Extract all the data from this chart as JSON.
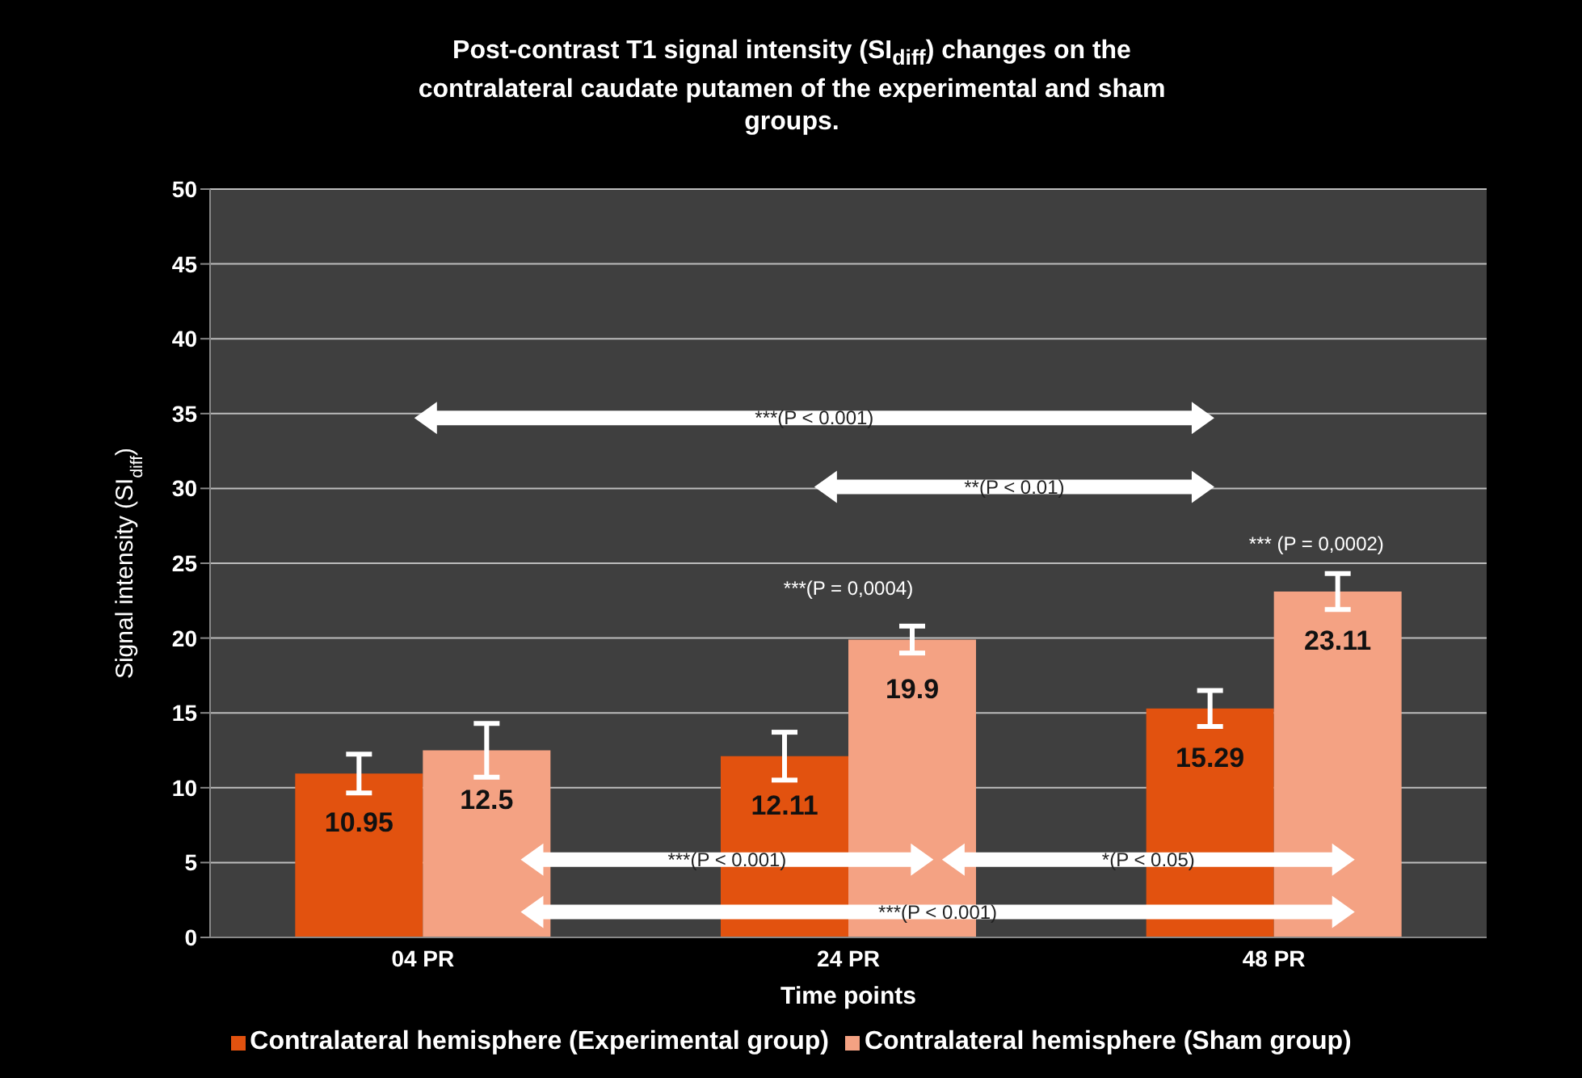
{
  "chart_data": {
    "type": "bar",
    "title": "Post-contrast T1 signal intensity (SI$_{diff}$)  changes on the contralateral caudate putamen of the experimental and sham groups.",
    "xlabel": "Time points",
    "ylabel": "Signal intensity (SI$_{diff}$)",
    "categories": [
      "04 PR",
      "24 PR",
      "48 PR"
    ],
    "series": [
      {
        "name": "Contralateral hemisphere (Experimental group)",
        "color": "#e2520f",
        "values": [
          10.95,
          12.11,
          15.29
        ],
        "errors": [
          1.3,
          1.6,
          1.2
        ]
      },
      {
        "name": "Contralateral hemisphere (Sham group)",
        "color": "#f4a283",
        "values": [
          12.5,
          19.9,
          23.11
        ],
        "errors": [
          1.8,
          0.9,
          1.2
        ]
      }
    ],
    "ylim": [
      0,
      50
    ],
    "yticks": [
      0,
      5,
      10,
      15,
      20,
      25,
      30,
      35,
      40,
      45,
      50
    ],
    "grid": "y",
    "legend": "bottom",
    "data_labels": true,
    "annotations": [
      "***(P < 0.001)",
      "**(P < 0.01)",
      "***(P = 0,0004)",
      "*** (P = 0,0002)",
      "***(P < 0.001)",
      "*(P < 0.05)",
      "***(P < 0.001)"
    ]
  }
}
